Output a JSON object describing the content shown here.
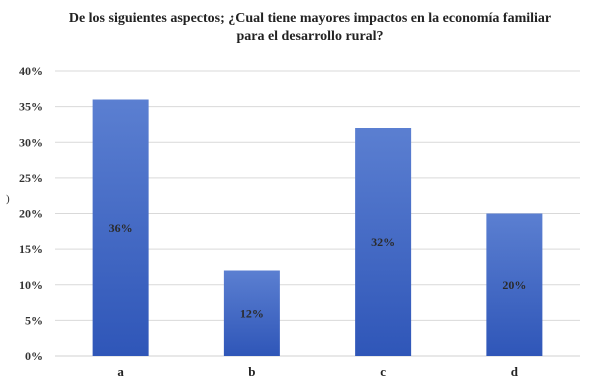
{
  "chart_data": {
    "type": "bar",
    "title": "De los siguientes aspectos; ¿Cual tiene mayores impactos en la economía familiar para el desarrollo rural?",
    "categories": [
      "a",
      "b",
      "c",
      "d"
    ],
    "values": [
      36,
      12,
      32,
      20
    ],
    "data_labels": [
      "36%",
      "12%",
      "32%",
      "20%"
    ],
    "ylim": [
      0,
      40
    ],
    "ytick_values": [
      0,
      5,
      10,
      15,
      20,
      25,
      30,
      35,
      40
    ],
    "ytick_labels": [
      "0%",
      "5%",
      "10%",
      "15%",
      "20%",
      "25%",
      "30%",
      "35%",
      "40%"
    ],
    "xlabel": "",
    "ylabel": ")",
    "grid": true,
    "legend": "none",
    "bar_color_top": "#5b7fd1",
    "bar_color_bottom": "#2f56b8",
    "grid_color": "#d9d9d9"
  }
}
